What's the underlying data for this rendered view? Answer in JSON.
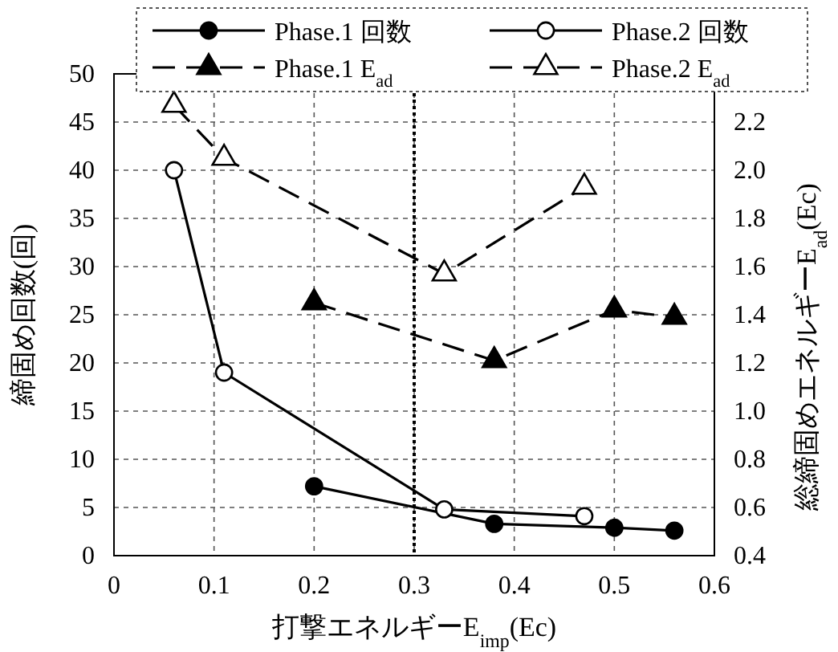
{
  "chart_data": {
    "type": "line",
    "xlabel": "打撃エネルギーE$_{imp}$(Ec)",
    "ylabel": "締固め回数(回)",
    "y2label": "総締固めエネルギーE$_{ad}$(Ec)",
    "xlim": [
      0,
      0.6
    ],
    "xticks": [
      0,
      0.1,
      0.2,
      0.3,
      0.4,
      0.5,
      0.6
    ],
    "ylim": [
      0,
      50
    ],
    "yticks": [
      0,
      5,
      10,
      15,
      20,
      25,
      30,
      35,
      40,
      45,
      50
    ],
    "y2lim": [
      0.4,
      2.4
    ],
    "y2ticks": [
      0.4,
      0.6,
      0.8,
      {
        "value": 1,
        "label": "1.0"
      },
      1.2,
      1.4,
      1.6,
      1.8,
      {
        "value": 2,
        "label": "2.0"
      },
      2.2
    ],
    "grid": true,
    "legend": "top",
    "ref_lines": [
      {
        "axis": "x",
        "value": 0.3,
        "line_style": "dotted",
        "color": "#000000"
      }
    ],
    "series": [
      {
        "name": "Phase.1 回数",
        "color": "#000000",
        "marker": "circle",
        "colors": [
          "#000000",
          "#000000",
          "#000000",
          "#000000"
        ],
        "line_style": "solid",
        "x": [
          0.2,
          0.38,
          0.5,
          0.56
        ],
        "values": [
          7.2,
          3.3,
          2.9,
          2.6
        ]
      },
      {
        "name": "Phase.2 回数",
        "color": "#000000",
        "marker": "circle",
        "colors": [
          "#ffffff",
          "#ffffff",
          "#ffffff",
          "#ffffff"
        ],
        "line_style": "solid",
        "x": [
          0.06,
          0.11,
          0.33,
          0.47
        ],
        "values": [
          40,
          19,
          4.8,
          4.1
        ]
      },
      {
        "name": "Phase.1 E$_{ad}$",
        "color": "#000000",
        "marker": "triangle",
        "colors": [
          "#000000",
          "#000000",
          "#000000",
          "#000000"
        ],
        "line_style": "dashed",
        "axis": "y2",
        "x": [
          0.2,
          0.38,
          0.5,
          0.56
        ],
        "values": [
          1.45,
          1.21,
          1.42,
          1.39
        ]
      },
      {
        "name": "Phase.2 E$_{ad}$",
        "color": "#000000",
        "marker": "triangle",
        "colors": [
          "#ffffff",
          "#ffffff",
          "#ffffff",
          "#ffffff"
        ],
        "line_style": "dashed",
        "axis": "y2",
        "x": [
          0.06,
          0.11,
          0.33,
          0.47
        ],
        "values": [
          2.27,
          2.05,
          1.57,
          1.93
        ]
      }
    ]
  }
}
